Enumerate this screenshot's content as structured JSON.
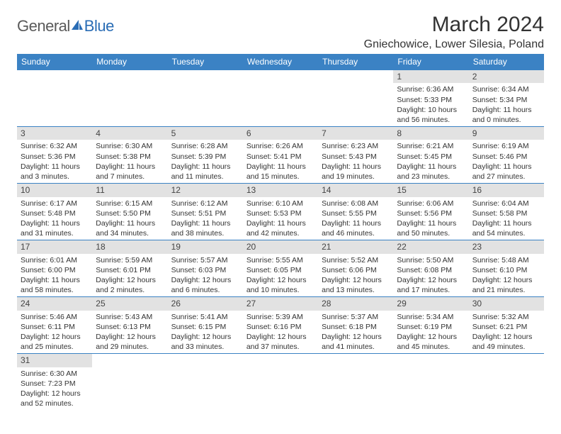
{
  "logo": {
    "part1": "General",
    "part2": "Blue"
  },
  "title": "March 2024",
  "location": "Gniechowice, Lower Silesia, Poland",
  "colors": {
    "header_bg": "#3b82c4",
    "header_text": "#ffffff",
    "daynum_bg": "#e2e2e2",
    "row_border": "#3b82c4",
    "logo_gray": "#5a5a5a",
    "logo_blue": "#2a6db5"
  },
  "weekdays": [
    "Sunday",
    "Monday",
    "Tuesday",
    "Wednesday",
    "Thursday",
    "Friday",
    "Saturday"
  ],
  "weeks": [
    [
      null,
      null,
      null,
      null,
      null,
      {
        "n": "1",
        "sr": "Sunrise: 6:36 AM",
        "ss": "Sunset: 5:33 PM",
        "dl1": "Daylight: 10 hours",
        "dl2": "and 56 minutes."
      },
      {
        "n": "2",
        "sr": "Sunrise: 6:34 AM",
        "ss": "Sunset: 5:34 PM",
        "dl1": "Daylight: 11 hours",
        "dl2": "and 0 minutes."
      }
    ],
    [
      {
        "n": "3",
        "sr": "Sunrise: 6:32 AM",
        "ss": "Sunset: 5:36 PM",
        "dl1": "Daylight: 11 hours",
        "dl2": "and 3 minutes."
      },
      {
        "n": "4",
        "sr": "Sunrise: 6:30 AM",
        "ss": "Sunset: 5:38 PM",
        "dl1": "Daylight: 11 hours",
        "dl2": "and 7 minutes."
      },
      {
        "n": "5",
        "sr": "Sunrise: 6:28 AM",
        "ss": "Sunset: 5:39 PM",
        "dl1": "Daylight: 11 hours",
        "dl2": "and 11 minutes."
      },
      {
        "n": "6",
        "sr": "Sunrise: 6:26 AM",
        "ss": "Sunset: 5:41 PM",
        "dl1": "Daylight: 11 hours",
        "dl2": "and 15 minutes."
      },
      {
        "n": "7",
        "sr": "Sunrise: 6:23 AM",
        "ss": "Sunset: 5:43 PM",
        "dl1": "Daylight: 11 hours",
        "dl2": "and 19 minutes."
      },
      {
        "n": "8",
        "sr": "Sunrise: 6:21 AM",
        "ss": "Sunset: 5:45 PM",
        "dl1": "Daylight: 11 hours",
        "dl2": "and 23 minutes."
      },
      {
        "n": "9",
        "sr": "Sunrise: 6:19 AM",
        "ss": "Sunset: 5:46 PM",
        "dl1": "Daylight: 11 hours",
        "dl2": "and 27 minutes."
      }
    ],
    [
      {
        "n": "10",
        "sr": "Sunrise: 6:17 AM",
        "ss": "Sunset: 5:48 PM",
        "dl1": "Daylight: 11 hours",
        "dl2": "and 31 minutes."
      },
      {
        "n": "11",
        "sr": "Sunrise: 6:15 AM",
        "ss": "Sunset: 5:50 PM",
        "dl1": "Daylight: 11 hours",
        "dl2": "and 34 minutes."
      },
      {
        "n": "12",
        "sr": "Sunrise: 6:12 AM",
        "ss": "Sunset: 5:51 PM",
        "dl1": "Daylight: 11 hours",
        "dl2": "and 38 minutes."
      },
      {
        "n": "13",
        "sr": "Sunrise: 6:10 AM",
        "ss": "Sunset: 5:53 PM",
        "dl1": "Daylight: 11 hours",
        "dl2": "and 42 minutes."
      },
      {
        "n": "14",
        "sr": "Sunrise: 6:08 AM",
        "ss": "Sunset: 5:55 PM",
        "dl1": "Daylight: 11 hours",
        "dl2": "and 46 minutes."
      },
      {
        "n": "15",
        "sr": "Sunrise: 6:06 AM",
        "ss": "Sunset: 5:56 PM",
        "dl1": "Daylight: 11 hours",
        "dl2": "and 50 minutes."
      },
      {
        "n": "16",
        "sr": "Sunrise: 6:04 AM",
        "ss": "Sunset: 5:58 PM",
        "dl1": "Daylight: 11 hours",
        "dl2": "and 54 minutes."
      }
    ],
    [
      {
        "n": "17",
        "sr": "Sunrise: 6:01 AM",
        "ss": "Sunset: 6:00 PM",
        "dl1": "Daylight: 11 hours",
        "dl2": "and 58 minutes."
      },
      {
        "n": "18",
        "sr": "Sunrise: 5:59 AM",
        "ss": "Sunset: 6:01 PM",
        "dl1": "Daylight: 12 hours",
        "dl2": "and 2 minutes."
      },
      {
        "n": "19",
        "sr": "Sunrise: 5:57 AM",
        "ss": "Sunset: 6:03 PM",
        "dl1": "Daylight: 12 hours",
        "dl2": "and 6 minutes."
      },
      {
        "n": "20",
        "sr": "Sunrise: 5:55 AM",
        "ss": "Sunset: 6:05 PM",
        "dl1": "Daylight: 12 hours",
        "dl2": "and 10 minutes."
      },
      {
        "n": "21",
        "sr": "Sunrise: 5:52 AM",
        "ss": "Sunset: 6:06 PM",
        "dl1": "Daylight: 12 hours",
        "dl2": "and 13 minutes."
      },
      {
        "n": "22",
        "sr": "Sunrise: 5:50 AM",
        "ss": "Sunset: 6:08 PM",
        "dl1": "Daylight: 12 hours",
        "dl2": "and 17 minutes."
      },
      {
        "n": "23",
        "sr": "Sunrise: 5:48 AM",
        "ss": "Sunset: 6:10 PM",
        "dl1": "Daylight: 12 hours",
        "dl2": "and 21 minutes."
      }
    ],
    [
      {
        "n": "24",
        "sr": "Sunrise: 5:46 AM",
        "ss": "Sunset: 6:11 PM",
        "dl1": "Daylight: 12 hours",
        "dl2": "and 25 minutes."
      },
      {
        "n": "25",
        "sr": "Sunrise: 5:43 AM",
        "ss": "Sunset: 6:13 PM",
        "dl1": "Daylight: 12 hours",
        "dl2": "and 29 minutes."
      },
      {
        "n": "26",
        "sr": "Sunrise: 5:41 AM",
        "ss": "Sunset: 6:15 PM",
        "dl1": "Daylight: 12 hours",
        "dl2": "and 33 minutes."
      },
      {
        "n": "27",
        "sr": "Sunrise: 5:39 AM",
        "ss": "Sunset: 6:16 PM",
        "dl1": "Daylight: 12 hours",
        "dl2": "and 37 minutes."
      },
      {
        "n": "28",
        "sr": "Sunrise: 5:37 AM",
        "ss": "Sunset: 6:18 PM",
        "dl1": "Daylight: 12 hours",
        "dl2": "and 41 minutes."
      },
      {
        "n": "29",
        "sr": "Sunrise: 5:34 AM",
        "ss": "Sunset: 6:19 PM",
        "dl1": "Daylight: 12 hours",
        "dl2": "and 45 minutes."
      },
      {
        "n": "30",
        "sr": "Sunrise: 5:32 AM",
        "ss": "Sunset: 6:21 PM",
        "dl1": "Daylight: 12 hours",
        "dl2": "and 49 minutes."
      }
    ],
    [
      {
        "n": "31",
        "sr": "Sunrise: 6:30 AM",
        "ss": "Sunset: 7:23 PM",
        "dl1": "Daylight: 12 hours",
        "dl2": "and 52 minutes."
      },
      null,
      null,
      null,
      null,
      null,
      null
    ]
  ]
}
